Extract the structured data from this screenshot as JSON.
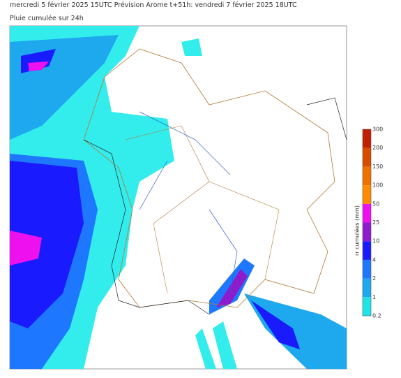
{
  "header": {
    "title": "mercredi 5 février 2025 15UTC Prévision Arome t+51h: vendredi 7 février 2025 18UTC",
    "subtitle": "Pluie cumulée sur 24h"
  },
  "colorbar": {
    "label": "rr cumulées (mm)",
    "ticks": [
      "0.2",
      "1",
      "2",
      "4",
      "10",
      "25",
      "50",
      "100",
      "150",
      "200",
      "300"
    ],
    "colors": [
      "#1ee6e6",
      "#1ea8ee",
      "#1e78ff",
      "#1a1aff",
      "#8c1ccc",
      "#ee10ee",
      "#ff8c00",
      "#ee7000",
      "#d84c00",
      "#c02000",
      "#900000"
    ]
  }
}
